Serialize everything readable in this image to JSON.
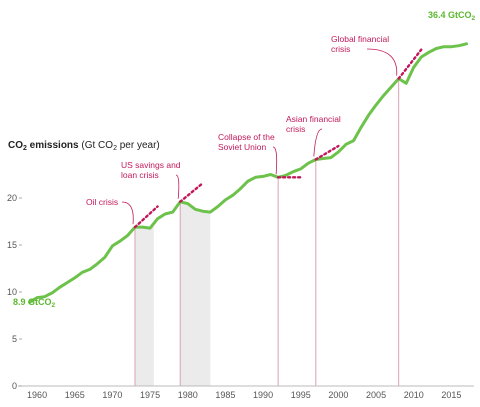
{
  "chart_data": {
    "type": "line",
    "title": "",
    "xlabel": "",
    "ylabel_parts": {
      "bold": "CO",
      "bold_sub": "2",
      "bold_tail": " emissions",
      "rest": " (Gt CO",
      "rest_sub": "2",
      "rest_tail": " per year)"
    },
    "xlim": [
      1958,
      2018
    ],
    "ylim": [
      0,
      40
    ],
    "x_ticks": [
      1960,
      1965,
      1970,
      1975,
      1980,
      1985,
      1990,
      1995,
      2000,
      2005,
      2010,
      2015
    ],
    "y_ticks": [
      0,
      5,
      10,
      15,
      20
    ],
    "grid": false,
    "colors": {
      "line": "#6cc24a",
      "annotation": "#c2185b",
      "crisis_line": "#d9a3b3",
      "shade": "#e6e6e6"
    },
    "series": [
      {
        "x": [
          1959,
          1960,
          1961,
          1962,
          1963,
          1964,
          1965,
          1966,
          1967,
          1968,
          1969,
          1970,
          1971,
          1972,
          1973,
          1974,
          1975,
          1976,
          1977,
          1978,
          1979,
          1980,
          1981,
          1982,
          1983,
          1984,
          1985,
          1986,
          1987,
          1988,
          1989,
          1990,
          1991,
          1992,
          1993,
          1994,
          1995,
          1996,
          1997,
          1998,
          1999,
          2000,
          2001,
          2002,
          2003,
          2004,
          2005,
          2006,
          2007,
          2008,
          2009,
          2010,
          2011,
          2012,
          2013,
          2014,
          2015,
          2016,
          2017
        ],
        "y": [
          8.9,
          9.4,
          9.5,
          9.9,
          10.5,
          11.0,
          11.5,
          12.1,
          12.4,
          13.0,
          13.7,
          14.9,
          15.4,
          16.0,
          16.9,
          16.9,
          16.8,
          17.8,
          18.3,
          18.5,
          19.6,
          19.4,
          18.8,
          18.6,
          18.5,
          19.1,
          19.8,
          20.3,
          21.0,
          21.8,
          22.2,
          22.3,
          22.5,
          22.2,
          22.4,
          22.8,
          23.1,
          23.7,
          24.1,
          24.2,
          24.3,
          24.9,
          25.7,
          26.1,
          27.5,
          28.8,
          29.9,
          30.9,
          31.8,
          32.7,
          32.2,
          33.9,
          35.0,
          35.5,
          35.9,
          36.1,
          36.1,
          36.2,
          36.4
        ]
      }
    ],
    "start_label": {
      "main": "8.9 GtCO",
      "sub": "2"
    },
    "end_label": {
      "main": "36.4 GtCO",
      "sub": "2"
    },
    "crises": [
      {
        "label_lines": [
          "Oil crisis"
        ],
        "year": 1973,
        "value": 16.9
      },
      {
        "label_lines": [
          "US savings and",
          "loan crisis"
        ],
        "year": 1979,
        "value": 19.6
      },
      {
        "label_lines": [
          "Collapse of the",
          "Soviet Union"
        ],
        "year": 1992,
        "value": 22.2
      },
      {
        "label_lines": [
          "Asian financial",
          "crisis"
        ],
        "year": 1997,
        "value": 24.1
      },
      {
        "label_lines": [
          "Global financial",
          "crisis"
        ],
        "year": 2008,
        "value": 32.7
      }
    ],
    "shaded_ranges": [
      [
        1973,
        1975.5
      ],
      [
        1979,
        1983
      ]
    ]
  }
}
